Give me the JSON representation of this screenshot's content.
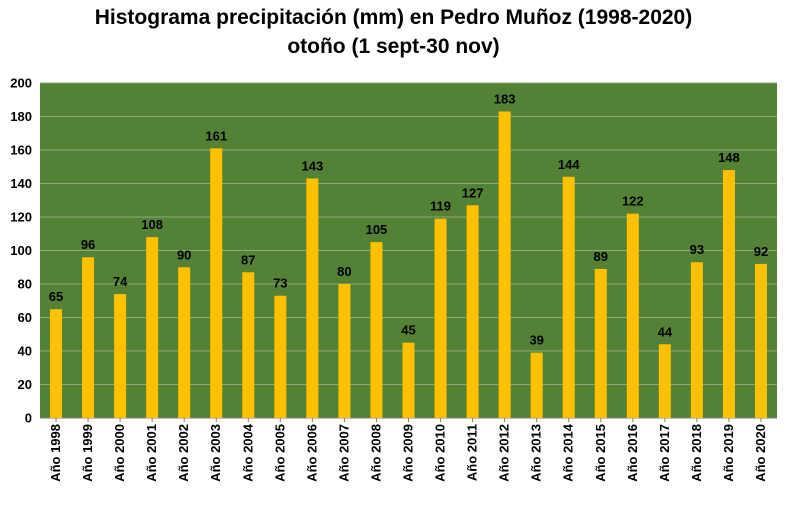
{
  "chart_data": {
    "type": "bar",
    "title": "Histograma precipitación (mm) en Pedro Muñoz (1998-2020)",
    "subtitle": "otoño  (1 sept-30 nov)",
    "xlabel": "",
    "ylabel": "",
    "ylim": [
      0,
      200
    ],
    "yticks": [
      0,
      20,
      40,
      60,
      80,
      100,
      120,
      140,
      160,
      180,
      200
    ],
    "grid": true,
    "colors": {
      "plot_bg": "#538135",
      "bar": "#FFC000",
      "grid": "#8FA97A"
    },
    "categories": [
      "Año 1998",
      "Año 1999",
      "Año 2000",
      "Año 2001",
      "Año 2002",
      "Año 2003",
      "Año 2004",
      "Año 2005",
      "Año 2006",
      "Año 2007",
      "Año 2008",
      "Año 2009",
      "Año 2010",
      "Año 2011",
      "Año 2012",
      "Año 2013",
      "Año 2014",
      "Año 2015",
      "Año 2016",
      "Año 2017",
      "Año 2018",
      "Año 2019",
      "Año 2020"
    ],
    "values": [
      65,
      96,
      74,
      108,
      90,
      161,
      87,
      73,
      143,
      80,
      105,
      45,
      119,
      127,
      183,
      39,
      144,
      89,
      122,
      44,
      93,
      148,
      92
    ]
  }
}
